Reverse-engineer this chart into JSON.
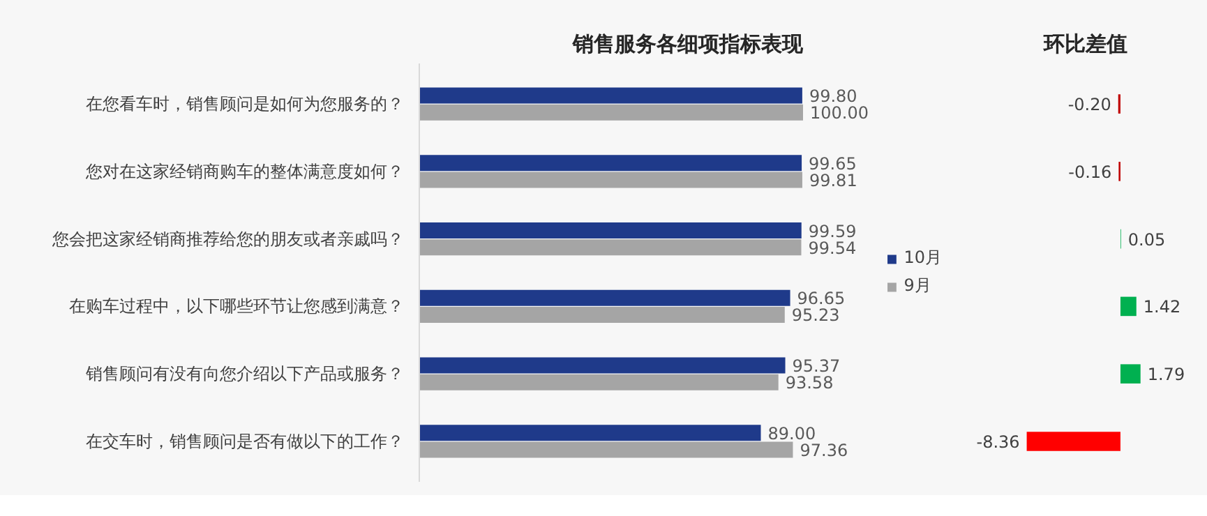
{
  "chart_data": [
    {
      "type": "bar",
      "orientation": "horizontal",
      "title": "销售服务各细项指标表现",
      "categories": [
        "在您看车时，销售顾问是如何为您服务的？",
        "您对在这家经销商购车的整体满意度如何？",
        "您会把这家经销商推荐给您的朋友或者亲戚吗？",
        "在购车过程中，以下哪些环节让您感到满意？",
        "销售顾问有没有向您介绍以下产品或服务？",
        "在交车时，销售顾问是否有做以下的工作？"
      ],
      "series": [
        {
          "name": "10月",
          "color": "#1f3a8a",
          "values": [
            99.8,
            99.65,
            99.59,
            96.65,
            95.37,
            89.0
          ],
          "value_labels": [
            "99.80",
            "99.65",
            "99.59",
            "96.65",
            "95.37",
            "89.00"
          ]
        },
        {
          "name": "9月",
          "color": "#a5a5a5",
          "values": [
            100.0,
            99.81,
            99.54,
            95.23,
            93.58,
            97.36
          ],
          "value_labels": [
            "100.00",
            "99.81",
            "99.54",
            "95.23",
            "93.58",
            "97.36"
          ]
        }
      ],
      "legend": "right",
      "tick_labels": "y",
      "grid": false
    },
    {
      "type": "bar",
      "orientation": "horizontal",
      "title": "环比差值",
      "categories": [
        null,
        null,
        null,
        null,
        null,
        null
      ],
      "values": [
        -0.2,
        -0.16,
        0.05,
        1.42,
        1.79,
        -8.36
      ],
      "value_labels": [
        "-0.20",
        "-0.16",
        "0.05",
        "1.42",
        "1.79",
        "-8.36"
      ],
      "colors": [
        "#c00000",
        "#c00000",
        "#00b050",
        "#00b050",
        "#00b050",
        "#ff0000"
      ],
      "tick_labels": false,
      "grid": false
    }
  ]
}
